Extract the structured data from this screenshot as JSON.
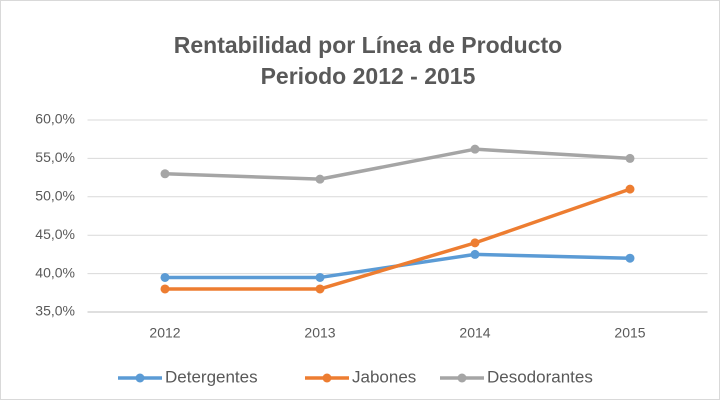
{
  "chart_data": {
    "type": "line",
    "title": "Rentabilidad por Línea de Producto",
    "subtitle": "Periodo 2012 - 2015",
    "categories": [
      "2012",
      "2013",
      "2014",
      "2015"
    ],
    "series": [
      {
        "name": "Detergentes",
        "color": "#5b9bd5",
        "values": [
          39.5,
          39.5,
          42.5,
          42.0
        ]
      },
      {
        "name": "Jabones",
        "color": "#ed7d31",
        "values": [
          38.0,
          38.0,
          44.0,
          51.0
        ]
      },
      {
        "name": "Desodorantes",
        "color": "#a5a5a5",
        "values": [
          53.0,
          52.3,
          56.2,
          55.0
        ]
      }
    ],
    "ylim": [
      35,
      60
    ],
    "yticks": [
      {
        "value": 35,
        "label": "35,0%"
      },
      {
        "value": 40,
        "label": "40,0%"
      },
      {
        "value": 45,
        "label": "45,0%"
      },
      {
        "value": 50,
        "label": "50,0%"
      },
      {
        "value": 55,
        "label": "55,0%"
      },
      {
        "value": 60,
        "label": "60,0%"
      }
    ],
    "grid": true,
    "legend": "bottom"
  }
}
